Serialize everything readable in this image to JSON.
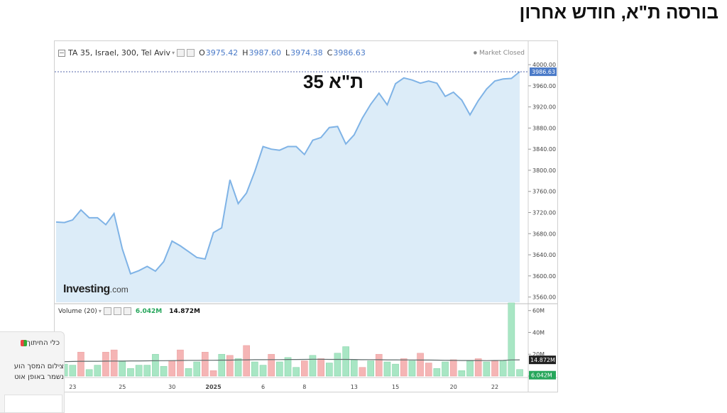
{
  "page": {
    "title": "בורסה ת\"א, חודש אחרון",
    "overlay_label": "ת\"א 35"
  },
  "chart_header": {
    "instrument": "TA 35, Israel, 300, Tel Aviv",
    "open_label": "O",
    "open": "3975.42",
    "high_label": "H",
    "high": "3987.60",
    "low_label": "L",
    "low": "3974.38",
    "close_label": "C",
    "close": "3986.63",
    "market_status": "Market Closed"
  },
  "watermark": {
    "main": "Investing",
    "suffix": ".com"
  },
  "volume_header": {
    "label": "Volume (20)",
    "value1": "6.042M",
    "value2": "14.872M"
  },
  "popup": {
    "title": "כלי החיתוך",
    "line1": "צילום המסך הוע",
    "line2": "נשמר באופן אוט"
  },
  "colors": {
    "line": "#7fb3e6",
    "area": "#dcecf8",
    "up_bar": "#a8e6c4",
    "down_bar": "#f5b5b5",
    "last_price_tag": "#4a7ac8",
    "ma_line": "#5f6b6b"
  },
  "chart_data": [
    {
      "type": "area",
      "series": [
        {
          "name": "TA 35, Israel, 300, Tel Aviv",
          "values": [
            3702,
            3701,
            3706,
            3725,
            3710,
            3710,
            3697,
            3718,
            3651,
            3604,
            3610,
            3618,
            3609,
            3627,
            3666,
            3657,
            3646,
            3635,
            3632,
            3682,
            3691,
            3782,
            3737,
            3757,
            3798,
            3845,
            3840,
            3838,
            3845,
            3845,
            3830,
            3857,
            3862,
            3881,
            3883,
            3850,
            3867,
            3899,
            3925,
            3946,
            3924,
            3964,
            3975,
            3971,
            3965,
            3969,
            3965,
            3940,
            3948,
            3933,
            3905,
            3932,
            3954,
            3969,
            3973,
            3974,
            3986.63
          ]
        }
      ],
      "last_value_label": "3986.63",
      "y_ticks": [
        "3560.00",
        "3600.00",
        "3640.00",
        "3680.00",
        "3720.00",
        "3760.00",
        "3800.00",
        "3840.00",
        "3880.00",
        "3920.00",
        "3960.00",
        "4000.00"
      ],
      "x_ticks": [
        "23",
        "25",
        "30",
        "2025",
        "6",
        "8",
        "13",
        "15",
        "20",
        "22"
      ],
      "ylim": [
        3550,
        4015
      ]
    },
    {
      "type": "bar",
      "title": "Volume (20)",
      "series": [
        {
          "name": "Volume",
          "values": [
            19,
            11,
            10,
            22,
            6,
            10,
            22,
            24,
            14,
            7,
            10,
            10,
            20,
            9,
            14,
            24,
            7,
            13,
            22,
            5,
            20,
            19,
            16,
            28,
            13,
            10,
            20,
            13,
            17,
            8,
            14,
            19,
            16,
            12,
            21,
            27,
            15,
            8,
            14,
            20,
            13,
            11,
            16,
            14,
            21,
            12,
            7,
            13,
            15,
            5,
            14,
            16,
            13,
            14,
            14,
            67,
            6.042
          ],
          "direction": [
            "down",
            "up",
            "up",
            "down",
            "up",
            "up",
            "down",
            "down",
            "up",
            "up",
            "up",
            "up",
            "up",
            "up",
            "down",
            "down",
            "up",
            "up",
            "down",
            "down",
            "up",
            "down",
            "up",
            "down",
            "up",
            "up",
            "down",
            "up",
            "up",
            "up",
            "down",
            "up",
            "down",
            "up",
            "up",
            "up",
            "up",
            "down",
            "up",
            "down",
            "up",
            "up",
            "down",
            "up",
            "down",
            "down",
            "up",
            "up",
            "down",
            "up",
            "up",
            "down",
            "up",
            "down",
            "up",
            "up",
            "up"
          ]
        }
      ],
      "moving_average": [
        13.5,
        13.2,
        13.4,
        13.6,
        13.6,
        13.6,
        13.7,
        13.8,
        13.7,
        13.9,
        13.9,
        14.0,
        14.1,
        14.1,
        14.2,
        14.3,
        14.4,
        14.4,
        14.5,
        14.5,
        14.6,
        14.6,
        14.8,
        14.9,
        15.0,
        15.0,
        15.1,
        15.1,
        15.2,
        15.2,
        15.3,
        15.4,
        15.4,
        15.3,
        15.3,
        15.3,
        15.2,
        15.0,
        15.1,
        15.0,
        14.9,
        14.9,
        14.8,
        14.8,
        14.7,
        14.7,
        14.6,
        14.5,
        14.4,
        14.3,
        14.3,
        14.3,
        14.2,
        14.3,
        14.4,
        14.8,
        14.872
      ],
      "y_ticks": [
        "0",
        "20M",
        "40M",
        "60M"
      ],
      "last_value_labels": [
        "14.872M",
        "6.042M"
      ],
      "ylim": [
        0,
        65
      ]
    }
  ]
}
